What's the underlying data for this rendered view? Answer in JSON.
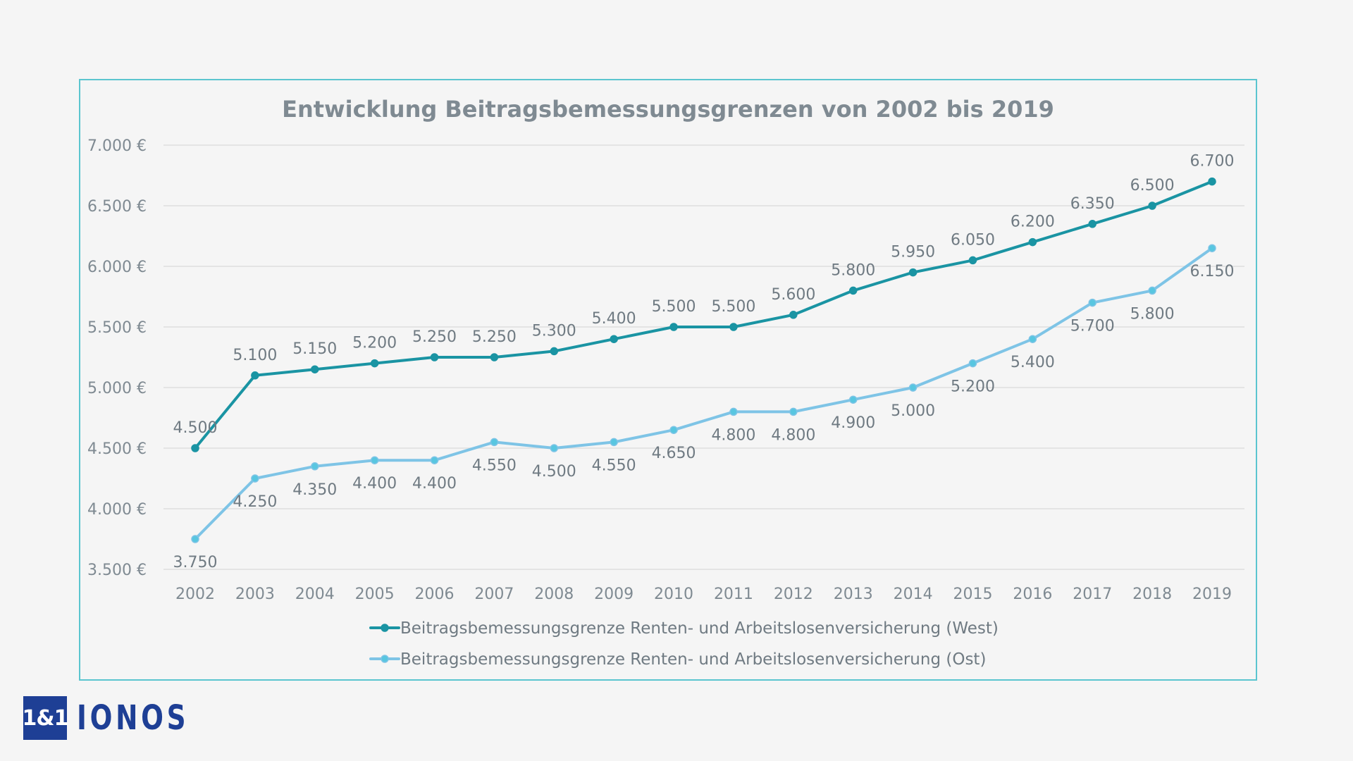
{
  "chart_data": {
    "type": "line",
    "title": "Entwicklung Beitragsbemessungsgrenzen von 2002 bis 2019",
    "categories": [
      "2002",
      "2003",
      "2004",
      "2005",
      "2006",
      "2007",
      "2008",
      "2009",
      "2010",
      "2011",
      "2012",
      "2013",
      "2014",
      "2015",
      "2016",
      "2017",
      "2018",
      "2019"
    ],
    "ylim": [
      3500,
      7000
    ],
    "yticks": [
      3500,
      4000,
      4500,
      5000,
      5500,
      6000,
      6500,
      7000
    ],
    "ytick_labels": [
      "3.500 €",
      "4.000 €",
      "4.500 €",
      "5.000 €",
      "5.500 €",
      "6.000 €",
      "6.500 €",
      "7.000 €"
    ],
    "grid": true,
    "legend_position": "bottom",
    "series": [
      {
        "name": "Beitragsbemessungsgrenze Renten- und Arbeitslosenversicherung (West)",
        "color": "#1a94a3",
        "values": [
          4500,
          5100,
          5150,
          5200,
          5250,
          5250,
          5300,
          5400,
          5500,
          5500,
          5600,
          5800,
          5950,
          6050,
          6200,
          6350,
          6500,
          6700
        ],
        "labels": [
          "4.500",
          "5.100",
          "5.150",
          "5.200",
          "5.250",
          "5.250",
          "5.300",
          "5.400",
          "5.500",
          "5.500",
          "5.600",
          "5.800",
          "5.950",
          "6.050",
          "6.200",
          "6.350",
          "6.500",
          "6.700"
        ]
      },
      {
        "name": "Beitragsbemessungsgrenze Renten- und Arbeitslosenversicherung (Ost)",
        "color": "#7ec4e6",
        "marker_color": "#58c6e0",
        "values": [
          3750,
          4250,
          4350,
          4400,
          4400,
          4550,
          4500,
          4550,
          4650,
          4800,
          4800,
          4900,
          5000,
          5200,
          5400,
          5700,
          5800,
          6150
        ],
        "labels": [
          "3.750",
          "4.250",
          "4.350",
          "4.400",
          "4.400",
          "4.550",
          "4.500",
          "4.550",
          "4.650",
          "4.800",
          "4.800",
          "4.900",
          "5.000",
          "5.200",
          "5.400",
          "5.700",
          "5.800",
          "6.150"
        ]
      }
    ]
  },
  "logo": {
    "badge": "1&1",
    "word": "IONOS"
  }
}
